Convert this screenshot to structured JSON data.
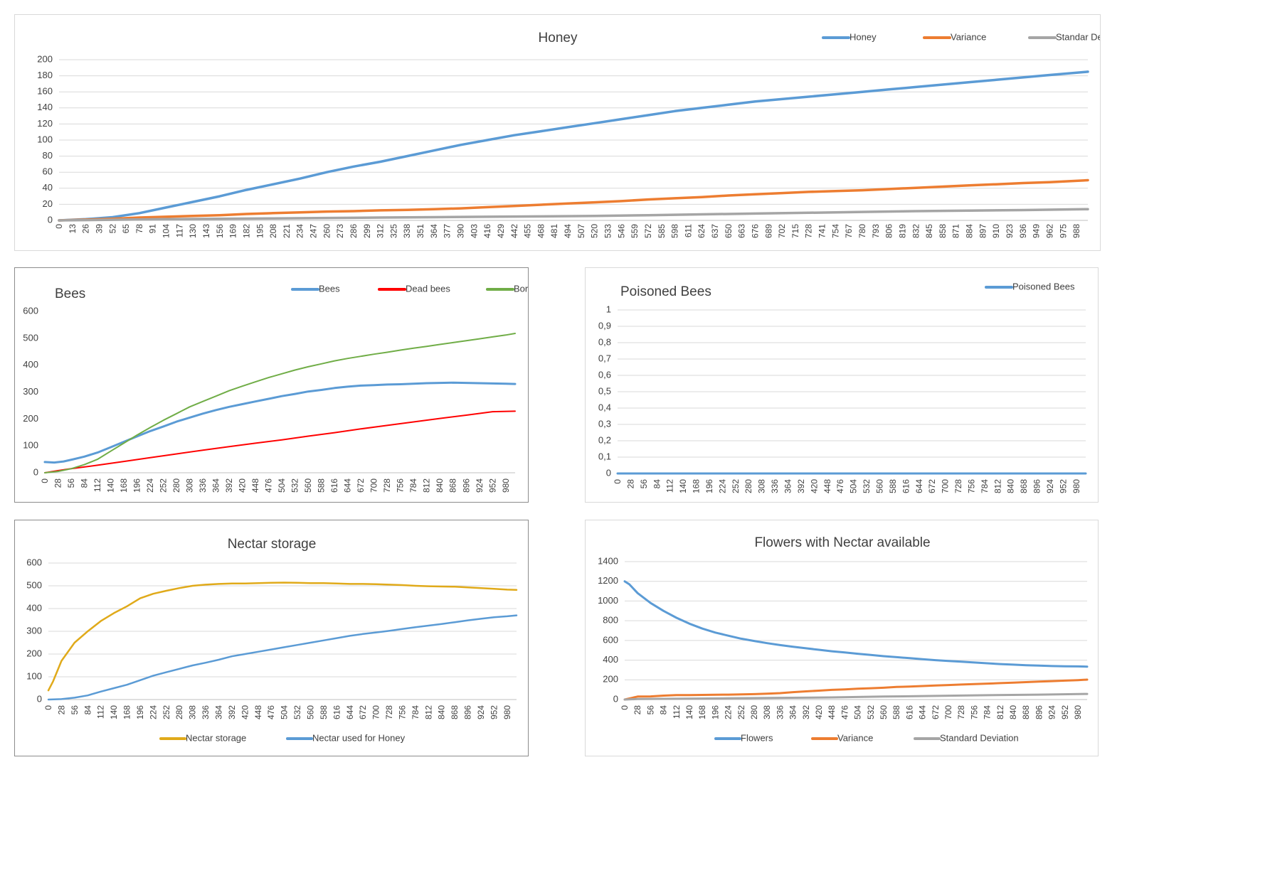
{
  "chart_data": [
    {
      "id": "honey",
      "type": "line",
      "title": "Honey",
      "xlabel": "",
      "ylabel": "",
      "x_range": [
        0,
        999
      ],
      "x_ticks": [
        0,
        13,
        26,
        39,
        52,
        65,
        78,
        91,
        104,
        117,
        130,
        143,
        156,
        169,
        182,
        195,
        208,
        221,
        234,
        247,
        260,
        273,
        286,
        299,
        312,
        325,
        338,
        351,
        364,
        377,
        390,
        403,
        416,
        429,
        442,
        455,
        468,
        481,
        494,
        507,
        520,
        533,
        546,
        559,
        572,
        585,
        598,
        611,
        624,
        637,
        650,
        663,
        676,
        689,
        702,
        715,
        728,
        741,
        754,
        767,
        780,
        793,
        806,
        819,
        832,
        845,
        858,
        871,
        884,
        897,
        910,
        923,
        936,
        949,
        962,
        975,
        988
      ],
      "ylim": [
        0,
        200
      ],
      "y_ticks": [
        0,
        20,
        40,
        60,
        80,
        100,
        120,
        140,
        160,
        180,
        200
      ],
      "y_tick_labels": [
        "0",
        "20",
        "40",
        "60",
        "80",
        "100",
        "120",
        "140",
        "160",
        "180",
        "200"
      ],
      "grid": true,
      "legend_position": "top-right",
      "series": [
        {
          "name": "Honey",
          "color": "#5b9bd5",
          "width": 3.5,
          "x": [
            0,
            26,
            52,
            78,
            104,
            130,
            156,
            182,
            208,
            234,
            260,
            286,
            312,
            338,
            364,
            390,
            416,
            442,
            468,
            494,
            520,
            546,
            572,
            598,
            624,
            650,
            676,
            702,
            728,
            754,
            780,
            806,
            832,
            858,
            884,
            910,
            936,
            962,
            999
          ],
          "y": [
            0,
            1.5,
            4,
            9,
            16,
            23,
            30,
            38,
            45,
            52,
            60,
            67,
            73,
            80,
            87,
            94,
            100,
            106,
            111,
            116,
            121,
            126,
            131,
            136,
            140,
            144,
            148,
            151,
            154,
            157,
            160,
            163,
            166,
            169,
            172,
            175,
            178,
            181,
            185
          ]
        },
        {
          "name": "Variance",
          "color": "#ed7d31",
          "width": 3.5,
          "x": [
            0,
            26,
            52,
            78,
            104,
            130,
            156,
            182,
            208,
            234,
            260,
            286,
            312,
            338,
            364,
            390,
            416,
            442,
            468,
            494,
            520,
            546,
            572,
            598,
            624,
            650,
            676,
            702,
            728,
            754,
            780,
            806,
            832,
            858,
            884,
            910,
            936,
            962,
            999
          ],
          "y": [
            0,
            1,
            2,
            3.5,
            4.5,
            5.5,
            6.5,
            8,
            9,
            10,
            11,
            11.5,
            12.5,
            13,
            14,
            15,
            16.5,
            18,
            19.5,
            21,
            22.5,
            24,
            26,
            27.5,
            29,
            31,
            32.5,
            34,
            35.5,
            36.5,
            37.5,
            39,
            40.5,
            42,
            43.5,
            45,
            46.5,
            47.5,
            50
          ]
        },
        {
          "name": "Standar Deviation",
          "color": "#a5a5a5",
          "width": 3.5,
          "x": [
            0,
            52,
            104,
            156,
            208,
            260,
            312,
            364,
            416,
            468,
            520,
            572,
            624,
            676,
            728,
            780,
            832,
            884,
            936,
            999
          ],
          "y": [
            0,
            0.8,
            1.5,
            2,
            2.5,
            3,
            3.5,
            4,
            4.5,
            5,
            5.5,
            6.5,
            7.5,
            8.5,
            9.5,
            10.5,
            11.5,
            12.2,
            12.8,
            14
          ]
        }
      ]
    },
    {
      "id": "bees",
      "type": "line",
      "title": "Bees",
      "xlabel": "",
      "ylabel": "",
      "x_range": [
        0,
        1000
      ],
      "x_ticks": [
        0,
        28,
        56,
        84,
        112,
        140,
        168,
        196,
        224,
        252,
        280,
        308,
        336,
        364,
        392,
        420,
        448,
        476,
        504,
        532,
        560,
        588,
        616,
        644,
        672,
        700,
        728,
        756,
        784,
        812,
        840,
        868,
        896,
        924,
        952,
        980
      ],
      "ylim": [
        0,
        600
      ],
      "y_ticks": [
        0,
        100,
        200,
        300,
        400,
        500,
        600
      ],
      "y_tick_labels": [
        "0",
        "100",
        "200",
        "300",
        "400",
        "500",
        "600"
      ],
      "grid": false,
      "legend_position": "top-right",
      "series": [
        {
          "name": "Bees",
          "color": "#5b9bd5",
          "width": 3,
          "x": [
            0,
            20,
            40,
            60,
            84,
            112,
            140,
            168,
            196,
            224,
            252,
            280,
            308,
            336,
            364,
            392,
            420,
            448,
            476,
            504,
            532,
            560,
            588,
            616,
            644,
            672,
            700,
            728,
            756,
            784,
            812,
            840,
            868,
            896,
            924,
            952,
            980,
            1000
          ],
          "y": [
            40,
            38,
            42,
            50,
            60,
            75,
            95,
            115,
            135,
            155,
            172,
            190,
            205,
            220,
            233,
            245,
            255,
            265,
            275,
            285,
            293,
            302,
            308,
            315,
            320,
            324,
            326,
            328,
            329,
            331,
            333,
            334,
            335,
            334,
            333,
            332,
            331,
            330
          ]
        },
        {
          "name": "Dead bees",
          "color": "#ff0000",
          "width": 2,
          "x": [
            0,
            28,
            56,
            112,
            168,
            224,
            280,
            336,
            392,
            448,
            504,
            560,
            616,
            672,
            728,
            784,
            840,
            896,
            952,
            1000
          ],
          "y": [
            0,
            8,
            15,
            28,
            42,
            56,
            70,
            84,
            97,
            110,
            122,
            136,
            149,
            163,
            176,
            189,
            202,
            214,
            227,
            229
          ]
        },
        {
          "name": "Born bees",
          "color": "#70ad47",
          "width": 2,
          "x": [
            0,
            28,
            56,
            84,
            112,
            140,
            168,
            196,
            224,
            252,
            280,
            308,
            336,
            364,
            392,
            420,
            448,
            476,
            504,
            532,
            560,
            588,
            616,
            644,
            672,
            700,
            728,
            756,
            784,
            812,
            840,
            868,
            896,
            924,
            952,
            980,
            1000
          ],
          "y": [
            0,
            5,
            15,
            30,
            50,
            80,
            110,
            140,
            168,
            195,
            220,
            245,
            265,
            285,
            305,
            322,
            338,
            354,
            368,
            382,
            394,
            405,
            416,
            425,
            433,
            441,
            448,
            456,
            463,
            470,
            477,
            484,
            491,
            498,
            505,
            512,
            518
          ]
        }
      ]
    },
    {
      "id": "poisoned",
      "type": "line",
      "title": "Poisoned Bees",
      "xlabel": "",
      "ylabel": "",
      "x_range": [
        0,
        1000
      ],
      "x_ticks": [
        0,
        28,
        56,
        84,
        112,
        140,
        168,
        196,
        224,
        252,
        280,
        308,
        336,
        364,
        392,
        420,
        448,
        476,
        504,
        532,
        560,
        588,
        616,
        644,
        672,
        700,
        728,
        756,
        784,
        812,
        840,
        868,
        896,
        924,
        952,
        980
      ],
      "ylim": [
        0,
        1
      ],
      "y_ticks": [
        0,
        0.1,
        0.2,
        0.3,
        0.4,
        0.5,
        0.6,
        0.7,
        0.8,
        0.9,
        1
      ],
      "y_tick_labels": [
        "0",
        "0,1",
        "0,2",
        "0,3",
        "0,4",
        "0,5",
        "0,6",
        "0,7",
        "0,8",
        "0,9",
        "1"
      ],
      "grid": true,
      "legend_position": "top-right",
      "series": [
        {
          "name": "Poisoned Bees",
          "color": "#5b9bd5",
          "width": 3,
          "x": [
            0,
            1000
          ],
          "y": [
            0,
            0
          ]
        }
      ]
    },
    {
      "id": "nectar",
      "type": "line",
      "title": "Nectar storage",
      "xlabel": "",
      "ylabel": "",
      "x_range": [
        0,
        1000
      ],
      "x_ticks": [
        0,
        28,
        56,
        84,
        112,
        140,
        168,
        196,
        224,
        252,
        280,
        308,
        336,
        364,
        392,
        420,
        448,
        476,
        504,
        532,
        560,
        588,
        616,
        644,
        672,
        700,
        728,
        756,
        784,
        812,
        840,
        868,
        896,
        924,
        952,
        980
      ],
      "ylim": [
        0,
        600
      ],
      "y_ticks": [
        0,
        100,
        200,
        300,
        400,
        500,
        600
      ],
      "y_tick_labels": [
        "0",
        "100",
        "200",
        "300",
        "400",
        "500",
        "600"
      ],
      "grid": true,
      "legend_position": "bottom",
      "series": [
        {
          "name": "Nectar storage",
          "color": "#e0aa1a",
          "width": 2.5,
          "x": [
            0,
            10,
            28,
            56,
            84,
            112,
            140,
            168,
            196,
            224,
            252,
            280,
            308,
            336,
            364,
            392,
            420,
            448,
            476,
            504,
            532,
            560,
            588,
            616,
            644,
            672,
            700,
            728,
            756,
            784,
            812,
            840,
            868,
            896,
            924,
            952,
            980,
            1000
          ],
          "y": [
            40,
            80,
            170,
            250,
            300,
            345,
            380,
            410,
            445,
            465,
            478,
            490,
            500,
            505,
            508,
            510,
            510,
            512,
            513,
            514,
            513,
            512,
            512,
            510,
            508,
            508,
            507,
            505,
            503,
            500,
            498,
            497,
            496,
            493,
            490,
            487,
            483,
            482
          ]
        },
        {
          "name": "Nectar used for Honey",
          "color": "#5b9bd5",
          "width": 2.5,
          "x": [
            0,
            28,
            56,
            84,
            112,
            140,
            168,
            196,
            224,
            252,
            280,
            308,
            336,
            364,
            392,
            420,
            448,
            476,
            504,
            532,
            560,
            588,
            616,
            644,
            672,
            700,
            728,
            756,
            784,
            812,
            840,
            868,
            896,
            924,
            952,
            980,
            1000
          ],
          "y": [
            0,
            2,
            8,
            18,
            35,
            50,
            65,
            85,
            105,
            120,
            135,
            150,
            162,
            175,
            190,
            200,
            210,
            220,
            230,
            240,
            250,
            260,
            270,
            280,
            288,
            295,
            302,
            310,
            318,
            325,
            332,
            340,
            348,
            355,
            362,
            366,
            370
          ]
        }
      ]
    },
    {
      "id": "flowers",
      "type": "line",
      "title": "Flowers with Nectar available",
      "xlabel": "",
      "ylabel": "",
      "x_range": [
        0,
        1000
      ],
      "x_ticks": [
        0,
        28,
        56,
        84,
        112,
        140,
        168,
        196,
        224,
        252,
        280,
        308,
        336,
        364,
        392,
        420,
        448,
        476,
        504,
        532,
        560,
        588,
        616,
        644,
        672,
        700,
        728,
        756,
        784,
        812,
        840,
        868,
        896,
        924,
        952,
        980
      ],
      "ylim": [
        0,
        1400
      ],
      "y_ticks": [
        0,
        200,
        400,
        600,
        800,
        1000,
        1200,
        1400
      ],
      "y_tick_labels": [
        "0",
        "200",
        "400",
        "600",
        "800",
        "1000",
        "1200",
        "1400"
      ],
      "grid": true,
      "legend_position": "bottom",
      "series": [
        {
          "name": "Flowers",
          "color": "#5b9bd5",
          "width": 3,
          "x": [
            0,
            10,
            28,
            56,
            84,
            112,
            140,
            168,
            196,
            224,
            252,
            280,
            308,
            336,
            364,
            392,
            420,
            448,
            476,
            504,
            532,
            560,
            588,
            616,
            644,
            672,
            700,
            728,
            756,
            784,
            812,
            840,
            868,
            896,
            924,
            952,
            980,
            1000
          ],
          "y": [
            1200,
            1170,
            1080,
            980,
            900,
            830,
            770,
            720,
            680,
            648,
            618,
            595,
            572,
            553,
            536,
            520,
            505,
            490,
            478,
            465,
            453,
            440,
            430,
            420,
            410,
            400,
            392,
            384,
            376,
            368,
            360,
            354,
            348,
            344,
            340,
            338,
            336,
            334
          ]
        },
        {
          "name": "Variance",
          "color": "#ed7d31",
          "width": 3,
          "x": [
            0,
            28,
            56,
            84,
            112,
            140,
            168,
            196,
            224,
            252,
            280,
            308,
            336,
            364,
            392,
            420,
            448,
            476,
            504,
            532,
            560,
            588,
            616,
            644,
            672,
            700,
            728,
            756,
            784,
            812,
            840,
            868,
            896,
            924,
            952,
            980,
            1000
          ],
          "y": [
            0,
            30,
            32,
            40,
            45,
            45,
            47,
            48,
            50,
            52,
            55,
            60,
            65,
            75,
            83,
            90,
            98,
            103,
            110,
            115,
            120,
            128,
            132,
            137,
            142,
            147,
            152,
            157,
            162,
            167,
            172,
            177,
            182,
            187,
            192,
            197,
            202
          ]
        },
        {
          "name": "Standard Deviation",
          "color": "#a5a5a5",
          "width": 3,
          "x": [
            0,
            28,
            112,
            224,
            336,
            448,
            560,
            672,
            784,
            896,
            1000
          ],
          "y": [
            0,
            5,
            8,
            12,
            17,
            22,
            30,
            37,
            44,
            50,
            57
          ]
        }
      ]
    }
  ]
}
